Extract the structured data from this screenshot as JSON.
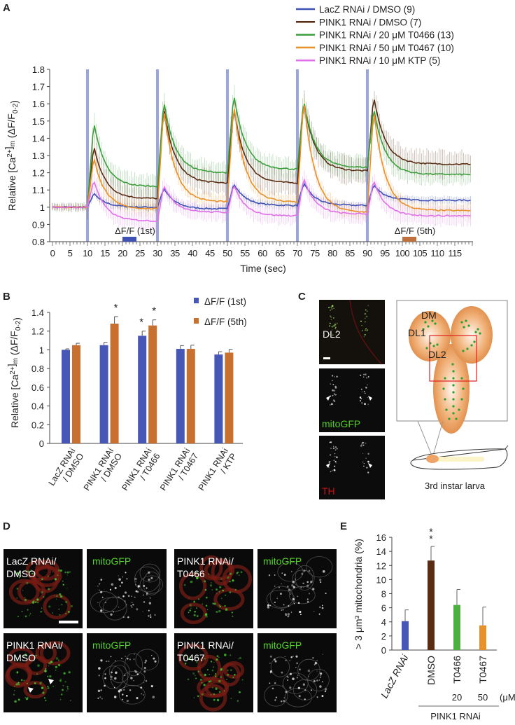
{
  "panels": {
    "a": "A",
    "b": "B",
    "c": "C",
    "d": "D",
    "e": "E"
  },
  "chart_data": [
    {
      "id": "A",
      "type": "line",
      "xlabel": "Time (sec)",
      "ylabel": "Relative [Ca2+]m (ΔF/F0-2)",
      "xlim": [
        0,
        120
      ],
      "ylim": [
        0.8,
        1.8
      ],
      "xticks": [
        "0",
        "5",
        "10",
        "15",
        "20",
        "25",
        "30",
        "35",
        "40",
        "45",
        "50",
        "55",
        "60",
        "65",
        "70",
        "75",
        "80",
        "85",
        "90",
        "95",
        "100",
        "105",
        "110",
        "115"
      ],
      "yticks": [
        "0.8",
        "0.9",
        "1",
        "1.1",
        "1.2",
        "1.3",
        "1.4",
        "1.5",
        "1.6",
        "1.7",
        "1.8"
      ],
      "stimulus_times": [
        10,
        30,
        50,
        70,
        90
      ],
      "stimulus_color": "#9aa6dc",
      "annotations": [
        {
          "text": "ΔF/F (1st)",
          "window": [
            20,
            24
          ],
          "color": "#3f51b5"
        },
        {
          "text": "ΔF/F (5th)",
          "window": [
            100,
            104
          ],
          "color": "#c0703a"
        }
      ],
      "legend_position": "top-right",
      "series": [
        {
          "name": "LacZ RNAi / DMSO (9)",
          "color": "#3f51b5",
          "baseline": 1.0,
          "peaks": [
            1.08,
            1.11,
            1.14,
            1.14,
            1.13
          ],
          "plateaus": [
            1.0,
            0.99,
            1.01,
            1.01,
            1.04
          ],
          "sem": 0.02
        },
        {
          "name": "PINK1 RNAi / DMSO (7)",
          "color": "#5a2d12",
          "baseline": 1.0,
          "peaks": [
            1.36,
            1.58,
            1.58,
            1.62,
            1.65
          ],
          "plateaus": [
            1.05,
            1.14,
            1.14,
            1.21,
            1.25
          ],
          "sem": 0.07
        },
        {
          "name": "PINK1 RNAi / 20 μM T0466 (13)",
          "color": "#3c9e3c",
          "baseline": 1.0,
          "peaks": [
            1.5,
            1.62,
            1.66,
            1.62,
            1.58
          ],
          "plateaus": [
            1.12,
            1.2,
            1.22,
            1.23,
            1.19
          ],
          "sem": 0.06
        },
        {
          "name": "PINK1 RNAi / 50 μM T0467 (10)",
          "color": "#e8902a",
          "baseline": 1.0,
          "peaks": [
            1.29,
            1.58,
            1.6,
            1.63,
            1.57
          ],
          "plateaus": [
            0.99,
            1.03,
            1.03,
            0.97,
            0.98
          ],
          "sem": 0.04
        },
        {
          "name": "PINK1 RNAi / 10 μM KTP (5)",
          "color": "#e070e8",
          "baseline": 1.0,
          "peaks": [
            1.16,
            1.13,
            1.13,
            1.17,
            1.16
          ],
          "plateaus": [
            0.92,
            0.97,
            0.95,
            0.96,
            0.95
          ],
          "sem": 0.05
        }
      ]
    },
    {
      "id": "B",
      "type": "bar",
      "ylabel": "Relative [Ca2+]m (ΔF/F0-2)",
      "ylim": [
        0,
        1.4
      ],
      "yticks": [
        "0",
        "0.2",
        "0.4",
        "0.6",
        "0.8",
        "1",
        "1.2",
        "1.4"
      ],
      "categories": [
        "LacZ RNAi / DMSO",
        "PINK1 RNAi / DMSO",
        "PINK1 RNAi / T0466",
        "PINK1 RNAi / T0467",
        "PINK1 RNAi / KTP"
      ],
      "legend_position": "top-right",
      "series": [
        {
          "name": "ΔF/F (1st)",
          "color": "#4657b5",
          "values": [
            1.0,
            1.05,
            1.15,
            1.01,
            0.95
          ],
          "errors": [
            0.01,
            0.03,
            0.05,
            0.035,
            0.03
          ],
          "significant": [
            false,
            false,
            true,
            false,
            false
          ]
        },
        {
          "name": "ΔF/F (5th)",
          "color": "#c8702f",
          "values": [
            1.05,
            1.28,
            1.26,
            1.01,
            0.97
          ],
          "errors": [
            0.02,
            0.075,
            0.06,
            0.04,
            0.035
          ],
          "significant": [
            false,
            true,
            true,
            false,
            false
          ]
        }
      ],
      "significance_mark": "*"
    },
    {
      "id": "E",
      "type": "bar",
      "ylabel": "> 3 μm³ mitochondria (%)",
      "ylim": [
        0,
        16
      ],
      "yticks": [
        "0",
        "2",
        "4",
        "6",
        "8",
        "10",
        "12",
        "14",
        "16"
      ],
      "categories": [
        "LacZ RNAi",
        "DMSO",
        "T0466",
        "T0467"
      ],
      "colors": [
        "#4657b5",
        "#5a2d12",
        "#4caf40",
        "#e8902a"
      ],
      "values": [
        4.1,
        12.7,
        6.4,
        3.5
      ],
      "errors": [
        1.6,
        2.0,
        2.2,
        2.6
      ],
      "significance": [
        "",
        "**",
        "",
        ""
      ],
      "concentrations": [
        "",
        "",
        "20",
        "50"
      ],
      "unit": "(μM)",
      "group_label": "PINK1 RNAi"
    }
  ],
  "panel_c": {
    "image_labels": [
      "DL2",
      "mitoGFP",
      "TH"
    ],
    "diagram_labels": {
      "dm": "DM",
      "dl1": "DL1",
      "dl2": "DL2"
    },
    "caption": "3rd instar larva"
  },
  "panel_d": {
    "images": [
      {
        "label1": "LacZ RNAi/",
        "label2": "DMSO",
        "channel": "mitoGFP"
      },
      {
        "label1": "PINK1 RNAi/",
        "label2": "T0466",
        "channel": "mitoGFP"
      },
      {
        "label1": "PINK1 RNAi/",
        "label2": "DMSO",
        "channel": "mitoGFP"
      },
      {
        "label1": "PINK1 RNAi/",
        "label2": "T0467",
        "channel": "mitoGFP"
      }
    ]
  }
}
